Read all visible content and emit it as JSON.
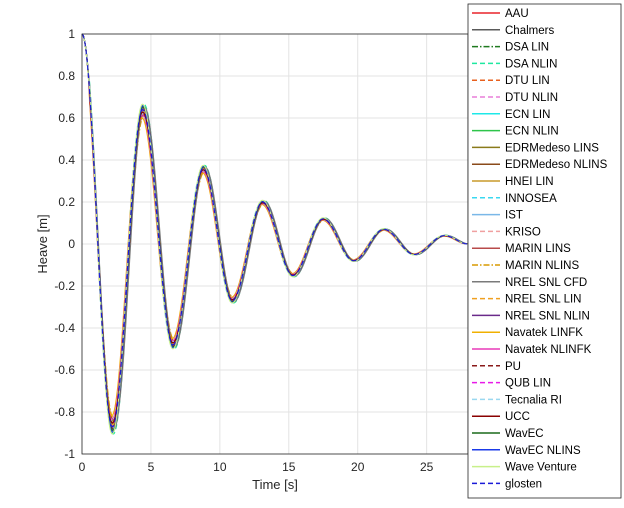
{
  "chart_data": {
    "type": "line",
    "title": "",
    "xlabel": "Time [s]",
    "ylabel": "Heave [m]",
    "xlim": [
      0,
      28
    ],
    "ylim": [
      -1,
      1
    ],
    "xticks": [
      "0",
      "5",
      "10",
      "15",
      "20",
      "25"
    ],
    "yticks": [
      "1",
      "0.8",
      "0.6",
      "0.4",
      "0.2",
      "0",
      "-0.2",
      "-0.4",
      "-0.6",
      "-0.8",
      "-1"
    ],
    "grid": true,
    "legend_position": "right, outside the axes",
    "reference_peaks": {
      "t": [
        0,
        2.2,
        4.4,
        6.6,
        8.8,
        10.9,
        13.1,
        15.3,
        17.5,
        19.7,
        21.9,
        24.1,
        26.3,
        28
      ],
      "heave": [
        1.0,
        -0.87,
        0.64,
        -0.48,
        0.36,
        -0.27,
        0.2,
        -0.15,
        0.12,
        -0.08,
        0.07,
        -0.05,
        0.04,
        0.0
      ]
    },
    "series": [
      {
        "name": "AAU",
        "color": "#e8232a",
        "dash": "solid",
        "amp": 1.0,
        "dt": 0.0
      },
      {
        "name": "Chalmers",
        "color": "#5a5a5a",
        "dash": "solid",
        "amp": 1.02,
        "dt": 0.06
      },
      {
        "name": "DSA LIN",
        "color": "#1f7a1f",
        "dash": "dashdot",
        "amp": 0.99,
        "dt": -0.03
      },
      {
        "name": "DSA NLIN",
        "color": "#1ee8a0",
        "dash": "dash",
        "amp": 1.04,
        "dt": 0.1
      },
      {
        "name": "DTU LIN",
        "color": "#e8601e",
        "dash": "dash",
        "amp": 0.98,
        "dt": 0.02
      },
      {
        "name": "DTU NLIN",
        "color": "#e87fd8",
        "dash": "dash",
        "amp": 1.0,
        "dt": -0.02
      },
      {
        "name": "ECN LIN",
        "color": "#1ee8e8",
        "dash": "solid",
        "amp": 1.01,
        "dt": 0.0
      },
      {
        "name": "ECN NLIN",
        "color": "#2ec44a",
        "dash": "solid",
        "amp": 1.03,
        "dt": 0.04
      },
      {
        "name": "EDRMedeso LINS",
        "color": "#8a7a1a",
        "dash": "solid",
        "amp": 0.97,
        "dt": -0.04
      },
      {
        "name": "EDRMedeso NLINS",
        "color": "#8a4a1a",
        "dash": "solid",
        "amp": 0.96,
        "dt": 0.05
      },
      {
        "name": "HNEI LIN",
        "color": "#c89a2a",
        "dash": "solid",
        "amp": 0.99,
        "dt": 0.03
      },
      {
        "name": "INNOSEA",
        "color": "#3ad8f0",
        "dash": "dash",
        "amp": 1.0,
        "dt": -0.05
      },
      {
        "name": "IST",
        "color": "#7ab8e8",
        "dash": "solid",
        "amp": 1.01,
        "dt": 0.01
      },
      {
        "name": "KRISO",
        "color": "#f0a0a0",
        "dash": "dash",
        "amp": 0.98,
        "dt": -0.01
      },
      {
        "name": "MARIN LINS",
        "color": "#b84a4a",
        "dash": "solid",
        "amp": 1.0,
        "dt": 0.07
      },
      {
        "name": "MARIN NLINS",
        "color": "#d89a00",
        "dash": "dashdot",
        "amp": 0.95,
        "dt": 0.08
      },
      {
        "name": "NREL SNL CFD",
        "color": "#7a7a7a",
        "dash": "solid",
        "amp": 1.02,
        "dt": 0.12
      },
      {
        "name": "NREL SNL LIN",
        "color": "#f0a020",
        "dash": "dash",
        "amp": 0.99,
        "dt": 0.0
      },
      {
        "name": "NREL SNL NLIN",
        "color": "#6a2a8a",
        "dash": "solid",
        "amp": 0.98,
        "dt": 0.02
      },
      {
        "name": "Navatek LINFK",
        "color": "#f0b000",
        "dash": "solid",
        "amp": 0.94,
        "dt": -0.06
      },
      {
        "name": "Navatek NLINFK",
        "color": "#e83ab8",
        "dash": "solid",
        "amp": 0.96,
        "dt": -0.03
      },
      {
        "name": "PU",
        "color": "#8a1a1a",
        "dash": "dash",
        "amp": 1.01,
        "dt": 0.05
      },
      {
        "name": "QUB LIN",
        "color": "#e81ae8",
        "dash": "dash",
        "amp": 1.0,
        "dt": 0.01
      },
      {
        "name": "Tecnalia RI",
        "color": "#9ad8f0",
        "dash": "dash",
        "amp": 0.97,
        "dt": -0.02
      },
      {
        "name": "UCC",
        "color": "#8a0000",
        "dash": "solid",
        "amp": 0.98,
        "dt": 0.0
      },
      {
        "name": "WavEC",
        "color": "#1a6a1a",
        "dash": "solid",
        "amp": 1.02,
        "dt": 0.03
      },
      {
        "name": "WavEC NLINS",
        "color": "#1a3ae8",
        "dash": "solid",
        "amp": 1.03,
        "dt": 0.02
      },
      {
        "name": "Wave Venture",
        "color": "#c8f08a",
        "dash": "solid",
        "amp": 1.04,
        "dt": -0.01
      },
      {
        "name": "glosten",
        "color": "#1a1ad8",
        "dash": "dash",
        "amp": 1.0,
        "dt": 0.0
      }
    ]
  }
}
